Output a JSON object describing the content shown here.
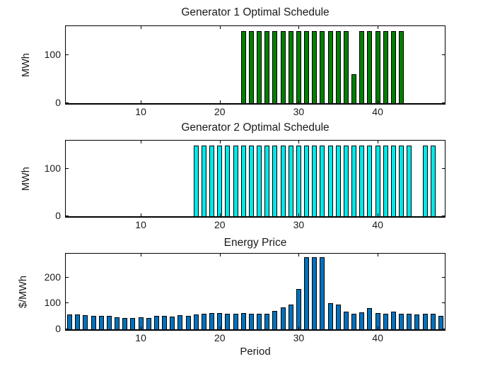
{
  "figure": {
    "background": "#ffffff",
    "xlabel": "Period"
  },
  "chart_data": [
    {
      "type": "bar",
      "title": "Generator 1 Optimal Schedule",
      "ylabel": "MWh",
      "bar_color": "#008000",
      "edge_color": "#000000",
      "xlim": [
        0.5,
        48.5
      ],
      "ylim": [
        0,
        160
      ],
      "xticks": [
        10,
        20,
        30,
        40
      ],
      "yticks": [
        0,
        100
      ],
      "x": [
        1,
        2,
        3,
        4,
        5,
        6,
        7,
        8,
        9,
        10,
        11,
        12,
        13,
        14,
        15,
        16,
        17,
        18,
        19,
        20,
        21,
        22,
        23,
        24,
        25,
        26,
        27,
        28,
        29,
        30,
        31,
        32,
        33,
        34,
        35,
        36,
        37,
        38,
        39,
        40,
        41,
        42,
        43,
        44,
        45,
        46,
        47,
        48
      ],
      "values": [
        0,
        0,
        0,
        0,
        0,
        0,
        0,
        0,
        0,
        0,
        0,
        0,
        0,
        0,
        0,
        0,
        0,
        0,
        0,
        0,
        0,
        0,
        150,
        150,
        150,
        150,
        150,
        150,
        150,
        150,
        150,
        150,
        150,
        150,
        150,
        150,
        60,
        150,
        150,
        150,
        150,
        150,
        150,
        0,
        0,
        0,
        0,
        0
      ]
    },
    {
      "type": "bar",
      "title": "Generator 2 Optimal Schedule",
      "ylabel": "MWh",
      "bar_color": "#00e8e8",
      "edge_color": "#000000",
      "xlim": [
        0.5,
        48.5
      ],
      "ylim": [
        0,
        160
      ],
      "xticks": [
        10,
        20,
        30,
        40
      ],
      "yticks": [
        0,
        100
      ],
      "x": [
        1,
        2,
        3,
        4,
        5,
        6,
        7,
        8,
        9,
        10,
        11,
        12,
        13,
        14,
        15,
        16,
        17,
        18,
        19,
        20,
        21,
        22,
        23,
        24,
        25,
        26,
        27,
        28,
        29,
        30,
        31,
        32,
        33,
        34,
        35,
        36,
        37,
        38,
        39,
        40,
        41,
        42,
        43,
        44,
        45,
        46,
        47,
        48
      ],
      "values": [
        0,
        0,
        0,
        0,
        0,
        0,
        0,
        0,
        0,
        0,
        0,
        0,
        0,
        0,
        0,
        0,
        150,
        150,
        150,
        150,
        150,
        150,
        150,
        150,
        150,
        150,
        150,
        150,
        150,
        150,
        150,
        150,
        150,
        150,
        150,
        150,
        150,
        150,
        150,
        150,
        150,
        150,
        150,
        150,
        0,
        150,
        150,
        0
      ]
    },
    {
      "type": "bar",
      "title": "Energy Price",
      "ylabel": "$/MWh",
      "xlabel": "Period",
      "bar_color": "#0072bd",
      "edge_color": "#000000",
      "xlim": [
        0.5,
        48.5
      ],
      "ylim": [
        0,
        293
      ],
      "xticks": [
        10,
        20,
        30,
        40
      ],
      "yticks": [
        0,
        100,
        200
      ],
      "x": [
        1,
        2,
        3,
        4,
        5,
        6,
        7,
        8,
        9,
        10,
        11,
        12,
        13,
        14,
        15,
        16,
        17,
        18,
        19,
        20,
        21,
        22,
        23,
        24,
        25,
        26,
        27,
        28,
        29,
        30,
        31,
        32,
        33,
        34,
        35,
        36,
        37,
        38,
        39,
        40,
        41,
        42,
        43,
        44,
        45,
        46,
        47,
        48
      ],
      "values": [
        58,
        57,
        56,
        52,
        52,
        53,
        46,
        45,
        45,
        46,
        45,
        51,
        51,
        50,
        54,
        53,
        58,
        61,
        62,
        62,
        61,
        61,
        62,
        61,
        60,
        60,
        70,
        86,
        95,
        156,
        280,
        280,
        280,
        100,
        95,
        68,
        60,
        66,
        82,
        63,
        59,
        68,
        59,
        59,
        57,
        59,
        60,
        52
      ]
    }
  ]
}
